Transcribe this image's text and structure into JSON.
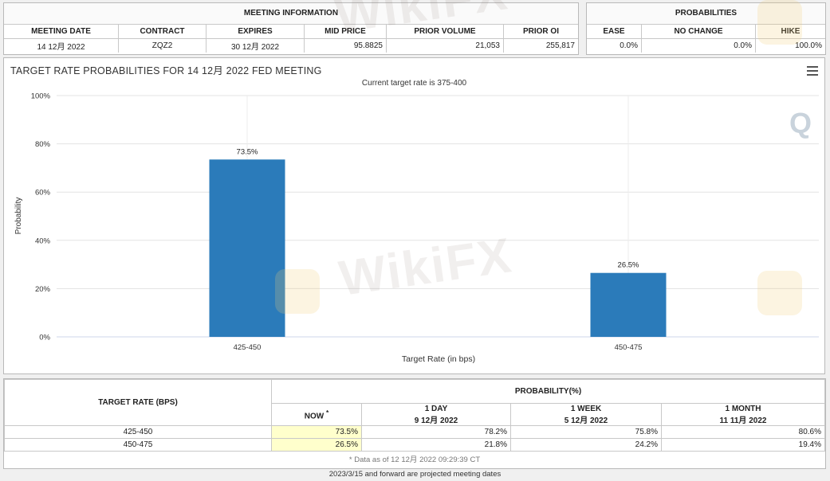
{
  "meeting_info": {
    "title": "MEETING INFORMATION",
    "headers": [
      "MEETING DATE",
      "CONTRACT",
      "EXPIRES",
      "MID PRICE",
      "PRIOR VOLUME",
      "PRIOR OI"
    ],
    "row": [
      "14 12月 2022",
      "ZQZ2",
      "30 12月 2022",
      "95.8825",
      "21,053",
      "255,817"
    ]
  },
  "probabilities_box": {
    "title": "PROBABILITIES",
    "headers": [
      "EASE",
      "NO CHANGE",
      "HIKE"
    ],
    "row": [
      "0.0%",
      "0.0%",
      "100.0%"
    ]
  },
  "chart_data": {
    "type": "bar",
    "title": "TARGET RATE PROBABILITIES FOR 14 12月 2022 FED MEETING",
    "subtitle": "Current target rate is 375-400",
    "categories": [
      "425-450",
      "450-475"
    ],
    "values": [
      73.5,
      26.5
    ],
    "data_labels": [
      "73.5%",
      "26.5%"
    ],
    "xlabel": "Target Rate (in bps)",
    "ylabel": "Probability",
    "ylim": [
      0,
      100
    ],
    "y_ticks": [
      0,
      20,
      40,
      60,
      80,
      100
    ],
    "y_tick_labels": [
      "0%",
      "20%",
      "40%",
      "60%",
      "80%",
      "100%"
    ],
    "bar_color": "#2b7bba",
    "grid": true
  },
  "probability_table": {
    "target_rate_header": "TARGET RATE (BPS)",
    "probability_header": "PROBABILITY(%)",
    "now_label": "NOW",
    "now_marker": "*",
    "columns": [
      {
        "label": "1 DAY",
        "date": "9 12月 2022"
      },
      {
        "label": "1 WEEK",
        "date": "5 12月 2022"
      },
      {
        "label": "1 MONTH",
        "date": "11 11月 2022"
      }
    ],
    "rows": [
      {
        "rate": "425-450",
        "now": "73.5%",
        "d1": "78.2%",
        "w1": "75.8%",
        "m1": "80.6%"
      },
      {
        "rate": "450-475",
        "now": "26.5%",
        "d1": "21.8%",
        "w1": "24.2%",
        "m1": "19.4%"
      }
    ],
    "data_note": "* Data as of 12 12月 2022 09:29:39 CT"
  },
  "footer_note": "2023/3/15 and forward are projected meeting dates",
  "watermark": "WikiFX",
  "colors": {
    "bar": "#2b7bba",
    "highlight": "#ffffcc",
    "border": "#c8c8c8"
  }
}
